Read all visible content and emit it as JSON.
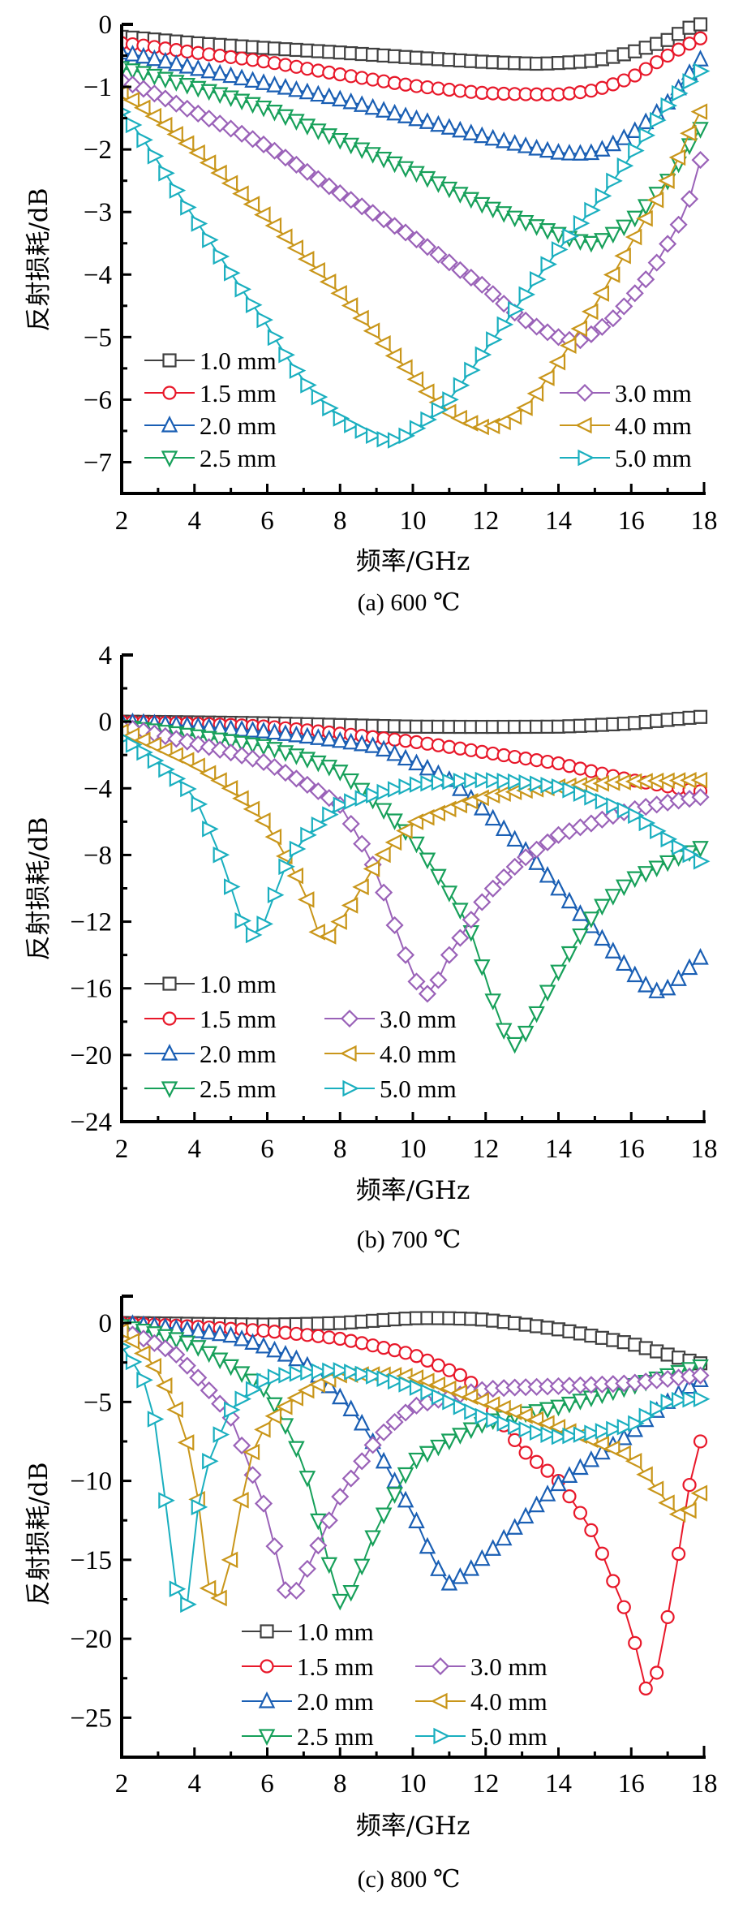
{
  "chart_data": [
    {
      "type": "line",
      "panel": "a",
      "caption": "(a)  600 ℃",
      "xlabel": "频率/GHz",
      "ylabel": "反射损耗/dB",
      "xlim": [
        2,
        18
      ],
      "ylim": [
        -7.5,
        0
      ],
      "xticks": [
        2,
        4,
        6,
        8,
        10,
        12,
        14,
        16,
        18
      ],
      "yticks": [
        0,
        -1,
        -2,
        -3,
        -4,
        -5,
        -6,
        -7
      ],
      "ytick_labels": [
        "0",
        "−1",
        "−2",
        "−3",
        "−4",
        "−5",
        "−6",
        "−7"
      ],
      "grid": false,
      "legend": {
        "placement": "bottom-left and bottom-right",
        "columns": [
          [
            "1.0 mm",
            "1.5 mm",
            "2.0 mm",
            "2.5 mm"
          ],
          [
            "3.0 mm",
            "4.0 mm",
            "5.0 mm"
          ]
        ]
      },
      "series": [
        {
          "name": "1.0 mm",
          "color": "#404040",
          "marker": "square",
          "x": [
            2,
            4,
            6,
            8,
            10,
            12,
            13.5,
            15,
            16,
            17,
            17.8
          ],
          "y": [
            -0.2,
            -0.3,
            -0.38,
            -0.45,
            -0.53,
            -0.6,
            -0.63,
            -0.58,
            -0.45,
            -0.25,
            0
          ]
        },
        {
          "name": "1.5 mm",
          "color": "#e8182a",
          "marker": "circle",
          "x": [
            2,
            4,
            6,
            8,
            10,
            12,
            14,
            15,
            16,
            17,
            18
          ],
          "y": [
            -0.3,
            -0.45,
            -0.6,
            -0.8,
            -0.98,
            -1.1,
            -1.12,
            -1.05,
            -0.85,
            -0.5,
            -0.2
          ]
        },
        {
          "name": "2.0 mm",
          "color": "#1a5fb4",
          "marker": "triangle-up",
          "x": [
            2,
            4,
            6,
            8,
            10,
            12,
            14,
            15,
            16,
            17,
            18
          ],
          "y": [
            -0.45,
            -0.7,
            -0.95,
            -1.2,
            -1.5,
            -1.8,
            -2.05,
            -2.05,
            -1.75,
            -1.25,
            -0.5
          ]
        },
        {
          "name": "2.5 mm",
          "color": "#17a05a",
          "marker": "triangle-down",
          "x": [
            2,
            4,
            6,
            8,
            10,
            12,
            14,
            15,
            16,
            17,
            18
          ],
          "y": [
            -0.7,
            -1.0,
            -1.35,
            -1.85,
            -2.35,
            -2.9,
            -3.35,
            -3.5,
            -3.15,
            -2.5,
            -1.6
          ]
        },
        {
          "name": "3.0 mm",
          "color": "#9a62b8",
          "marker": "diamond",
          "x": [
            2,
            4,
            6,
            8,
            10,
            12,
            13,
            14,
            14.6,
            15.5,
            16.5,
            17.5,
            18
          ],
          "y": [
            -0.9,
            -1.4,
            -1.95,
            -2.7,
            -3.4,
            -4.2,
            -4.7,
            -5.0,
            -5.05,
            -4.7,
            -4.0,
            -3.0,
            -2.0
          ]
        },
        {
          "name": "4.0 mm",
          "color": "#c9961a",
          "marker": "triangle-left",
          "x": [
            2,
            4,
            6,
            8,
            10,
            11,
            12,
            13,
            14,
            15,
            16,
            17,
            18
          ],
          "y": [
            -1.1,
            -2.0,
            -3.1,
            -4.3,
            -5.6,
            -6.2,
            -6.45,
            -6.2,
            -5.4,
            -4.5,
            -3.5,
            -2.5,
            -1.3
          ]
        },
        {
          "name": "5.0 mm",
          "color": "#1aafbf",
          "marker": "triangle-right",
          "x": [
            2,
            4,
            6,
            7,
            8,
            9,
            9.5,
            10,
            11,
            12,
            13,
            14,
            15,
            16,
            17,
            18
          ],
          "y": [
            -1.4,
            -3.1,
            -4.8,
            -5.7,
            -6.3,
            -6.6,
            -6.65,
            -6.5,
            -6.0,
            -5.2,
            -4.4,
            -3.6,
            -2.9,
            -2.1,
            -1.3,
            -0.7
          ]
        }
      ]
    },
    {
      "type": "line",
      "panel": "b",
      "caption": "(b)  700 ℃",
      "xlabel": "频率/GHz",
      "ylabel": "反射损耗/dB",
      "xlim": [
        2,
        18
      ],
      "ylim": [
        -24,
        4
      ],
      "xticks": [
        2,
        4,
        6,
        8,
        10,
        12,
        14,
        16,
        18
      ],
      "yticks": [
        4,
        0,
        -4,
        -8,
        -12,
        -16,
        -20,
        -24
      ],
      "ytick_labels": [
        "4",
        "0",
        "−4",
        "−8",
        "−12",
        "−16",
        "−20",
        "−24"
      ],
      "grid": false,
      "legend": {
        "placement": "bottom-left",
        "columns": [
          [
            "1.0 mm",
            "1.5 mm",
            "2.0 mm",
            "2.5 mm"
          ],
          [
            "3.0 mm",
            "4.0 mm",
            "5.0 mm"
          ]
        ]
      },
      "series": [
        {
          "name": "1.0 mm",
          "color": "#404040",
          "marker": "square",
          "x": [
            2,
            6,
            10,
            14,
            16,
            18
          ],
          "y": [
            0,
            -0.1,
            -0.3,
            -0.3,
            -0.1,
            0.3
          ]
        },
        {
          "name": "1.5 mm",
          "color": "#e8182a",
          "marker": "circle",
          "x": [
            2,
            6,
            10,
            14,
            16,
            18
          ],
          "y": [
            0,
            -0.3,
            -1.2,
            -2.5,
            -3.5,
            -4.2
          ]
        },
        {
          "name": "2.0 mm",
          "color": "#1a5fb4",
          "marker": "triangle-up",
          "x": [
            2,
            6,
            9,
            11,
            13,
            15,
            16.5,
            17,
            18
          ],
          "y": [
            0,
            -0.6,
            -1.5,
            -3.5,
            -7.5,
            -12.5,
            -16,
            -16,
            -14
          ]
        },
        {
          "name": "2.5 mm",
          "color": "#17a05a",
          "marker": "triangle-down",
          "x": [
            2,
            6,
            8,
            10,
            11.5,
            12.5,
            12.9,
            14,
            15,
            16,
            18
          ],
          "y": [
            -0.3,
            -1.5,
            -3,
            -7,
            -12,
            -18.5,
            -19.3,
            -15,
            -11.5,
            -9.5,
            -7.5
          ]
        },
        {
          "name": "3.0 mm",
          "color": "#9a62b8",
          "marker": "diamond",
          "x": [
            2,
            4,
            6,
            8,
            9,
            9.8,
            10.2,
            10.5,
            11,
            12,
            13,
            14,
            16,
            18
          ],
          "y": [
            -0.3,
            -1.3,
            -2.5,
            -5,
            -9,
            -14,
            -16,
            -16.3,
            -14,
            -10.5,
            -8.3,
            -6.8,
            -5.3,
            -4.5
          ]
        },
        {
          "name": "4.0 mm",
          "color": "#c9961a",
          "marker": "triangle-left",
          "x": [
            2,
            4,
            5,
            6,
            7,
            7.5,
            8,
            9,
            10,
            12,
            14,
            16,
            18
          ],
          "y": [
            -0.6,
            -2.5,
            -4,
            -6.2,
            -10,
            -13.1,
            -12,
            -8.5,
            -6.1,
            -4.5,
            -3.9,
            -3.6,
            -3.5
          ]
        },
        {
          "name": "5.0 mm",
          "color": "#1aafbf",
          "marker": "triangle-right",
          "x": [
            2,
            3,
            4,
            4.8,
            5.4,
            5.8,
            6.5,
            7,
            8,
            10,
            12,
            14,
            16,
            18
          ],
          "y": [
            -1,
            -2.5,
            -4.5,
            -8.5,
            -12.5,
            -12.6,
            -8.7,
            -7,
            -5,
            -3.8,
            -3.5,
            -3.9,
            -5.5,
            -8.5
          ]
        }
      ]
    },
    {
      "type": "line",
      "panel": "c",
      "caption": "(c)  800 ℃",
      "xlabel": "频率/GHz",
      "ylabel": "反射损耗/dB",
      "xlim": [
        2,
        18
      ],
      "ylim": [
        -27.5,
        1.7
      ],
      "xticks": [
        2,
        4,
        6,
        8,
        10,
        12,
        14,
        16,
        18
      ],
      "yticks": [
        0,
        -5,
        -10,
        -15,
        -20,
        -25
      ],
      "ytick_labels": [
        "0",
        "−5",
        "−10",
        "−15",
        "−20",
        "−25"
      ],
      "grid": false,
      "legend": {
        "placement": "bottom-center",
        "columns": [
          [
            "1.0 mm",
            "1.5 mm",
            "2.0 mm",
            "2.5 mm"
          ],
          [
            "3.0 mm",
            "4.0 mm",
            "5.0 mm"
          ]
        ]
      },
      "series": [
        {
          "name": "1.0 mm",
          "color": "#404040",
          "marker": "square",
          "x": [
            2,
            6,
            8,
            10,
            11,
            12,
            14,
            16,
            17,
            18
          ],
          "y": [
            0,
            -0.1,
            0,
            0.3,
            0.3,
            0.2,
            -0.4,
            -1.3,
            -2,
            -2.6
          ]
        },
        {
          "name": "1.5 mm",
          "color": "#e8182a",
          "marker": "circle",
          "x": [
            2,
            6,
            8,
            10,
            11.5,
            12,
            13,
            14,
            15,
            15.8,
            16.2,
            16.5,
            16.8,
            17.2,
            17.7,
            18
          ],
          "y": [
            0,
            -0.5,
            -1,
            -2,
            -3.5,
            -5,
            -8,
            -10,
            -13.5,
            -18,
            -21,
            -23.9,
            -21,
            -16,
            -9,
            -7
          ]
        },
        {
          "name": "2.0 mm",
          "color": "#1a5fb4",
          "marker": "triangle-up",
          "x": [
            2,
            5,
            7,
            8.5,
            10,
            10.8,
            11,
            12,
            14,
            16,
            17,
            18
          ],
          "y": [
            0,
            -0.8,
            -2.5,
            -6,
            -12,
            -16,
            -16.5,
            -14.7,
            -10.2,
            -7,
            -5,
            -3.5
          ]
        },
        {
          "name": "2.5 mm",
          "color": "#17a05a",
          "marker": "triangle-down",
          "x": [
            2,
            4,
            6,
            7,
            8,
            8.2,
            9,
            10,
            12,
            14,
            16,
            18
          ],
          "y": [
            -0.2,
            -1.4,
            -4.3,
            -9,
            -17.6,
            -17.5,
            -13,
            -8.8,
            -6.3,
            -5.3,
            -4,
            -2.7
          ]
        },
        {
          "name": "3.0 mm",
          "color": "#9a62b8",
          "marker": "diamond",
          "x": [
            2,
            3.5,
            5,
            6,
            6.4,
            6.6,
            7,
            8,
            9,
            10,
            12,
            14,
            16,
            18
          ],
          "y": [
            -0.5,
            -2,
            -6,
            -12,
            -16,
            -17.5,
            -16,
            -11,
            -7.4,
            -5.3,
            -4.2,
            -4,
            -3.8,
            -3.3
          ]
        },
        {
          "name": "4.0 mm",
          "color": "#c9961a",
          "marker": "triangle-left",
          "x": [
            2,
            3,
            3.6,
            4,
            4.5,
            5,
            5.5,
            6,
            7,
            8,
            10,
            12,
            14,
            16,
            17.4,
            18
          ],
          "y": [
            -0.5,
            -3,
            -6,
            -9.5,
            -18.2,
            -15,
            -8.8,
            -6.3,
            -4.4,
            -3.3,
            -3.4,
            -5,
            -6.6,
            -8.5,
            -12.3,
            -10.5
          ]
        },
        {
          "name": "5.0 mm",
          "color": "#1aafbf",
          "marker": "triangle-right",
          "x": [
            2,
            2.7,
            3,
            3.3,
            3.7,
            4,
            4.3,
            5,
            6,
            8,
            10,
            12,
            14,
            16,
            17,
            18
          ],
          "y": [
            -1.5,
            -4,
            -7.3,
            -13.3,
            -19.6,
            -13,
            -9.3,
            -5.5,
            -3.5,
            -3,
            -4,
            -6,
            -7.2,
            -6.5,
            -5,
            -4.8
          ]
        }
      ]
    }
  ]
}
